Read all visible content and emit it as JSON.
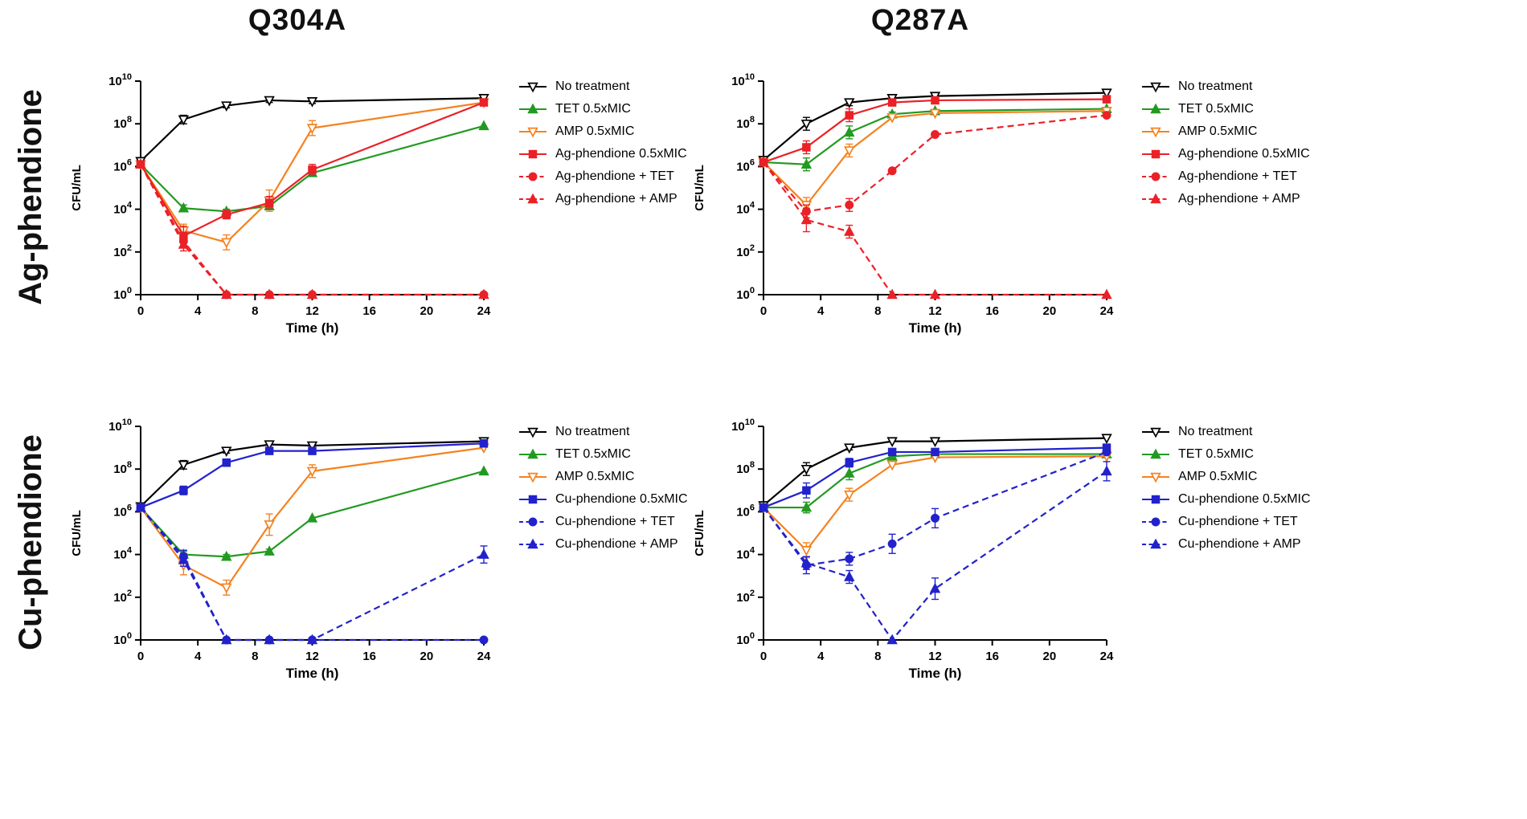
{
  "figure": {
    "column_titles": [
      "Q304A",
      "Q287A"
    ],
    "row_labels": [
      "Ag-phendione",
      "Cu-phendione"
    ],
    "background": "#ffffff"
  },
  "colors": {
    "no_treatment": "#000000",
    "tet": "#229a21",
    "amp": "#f5821f",
    "ag_phendione": "#ea2127",
    "cu_phendione": "#2222cc"
  },
  "chart_data": [
    {
      "type": "line",
      "title": "Q304A",
      "row_label": "Ag-phendione",
      "xlabel": "Time (h)",
      "ylabel": "CFU/mL",
      "x": [
        0,
        3,
        6,
        9,
        12,
        24
      ],
      "xticks": [
        0,
        4,
        8,
        12,
        16,
        20,
        24
      ],
      "ytick_exponents": [
        0,
        2,
        4,
        6,
        8,
        10
      ],
      "xlim": [
        0,
        24
      ],
      "ylog_lim": [
        0,
        10
      ],
      "grid": false,
      "legend_position": "right",
      "series": [
        {
          "name": "No treatment",
          "color": "#000000",
          "line": "solid",
          "marker": "triangle-down",
          "fill": "open",
          "y_log": [
            6.25,
            8.2,
            8.85,
            9.1,
            9.05,
            9.2
          ],
          "err": [
            0.15,
            0.2,
            0.1,
            0.1,
            0.1,
            0.1
          ]
        },
        {
          "name": "TET 0.5xMIC",
          "color": "#229a21",
          "line": "solid",
          "marker": "triangle-up",
          "fill": "solid",
          "y_log": [
            6.1,
            4.05,
            3.9,
            4.15,
            5.7,
            7.9
          ],
          "err": [
            0,
            0.15,
            0.1,
            0.15,
            0.1,
            0
          ]
        },
        {
          "name": "AMP 0.5xMIC",
          "color": "#f5821f",
          "line": "solid",
          "marker": "triangle-down",
          "fill": "open",
          "y_log": [
            6.1,
            3.0,
            2.45,
            4.4,
            7.8,
            9.0
          ],
          "err": [
            0,
            0.3,
            0.35,
            0.5,
            0.35,
            0
          ]
        },
        {
          "name": "Ag-phendione 0.5xMIC",
          "color": "#ea2127",
          "line": "solid",
          "marker": "square",
          "fill": "solid",
          "y_log": [
            6.1,
            2.75,
            3.75,
            4.3,
            5.85,
            9.0
          ],
          "err": [
            0,
            0.45,
            0.2,
            0.3,
            0.25,
            0
          ]
        },
        {
          "name": "Ag-phendione + TET",
          "color": "#ea2127",
          "line": "dashed",
          "marker": "circle",
          "fill": "solid",
          "y_log": [
            6.1,
            2.5,
            0,
            0,
            0,
            0
          ],
          "err": [
            0,
            0.3,
            0,
            0,
            0,
            0
          ]
        },
        {
          "name": "Ag-phendione + AMP",
          "color": "#ea2127",
          "line": "dashed",
          "marker": "triangle-up",
          "fill": "solid",
          "y_log": [
            6.1,
            2.35,
            0,
            0,
            0,
            0
          ],
          "err": [
            0,
            0.3,
            0,
            0,
            0,
            0
          ]
        }
      ]
    },
    {
      "type": "line",
      "title": "Q287A",
      "row_label": "Ag-phendione",
      "xlabel": "Time (h)",
      "ylabel": "CFU/mL",
      "x": [
        0,
        3,
        6,
        9,
        12,
        24
      ],
      "xticks": [
        0,
        4,
        8,
        12,
        16,
        20,
        24
      ],
      "ytick_exponents": [
        0,
        2,
        4,
        6,
        8,
        10
      ],
      "xlim": [
        0,
        24
      ],
      "ylog_lim": [
        0,
        10
      ],
      "grid": false,
      "legend_position": "right",
      "series": [
        {
          "name": "No treatment",
          "color": "#000000",
          "line": "solid",
          "marker": "triangle-down",
          "fill": "open",
          "y_log": [
            6.3,
            8.0,
            9.0,
            9.2,
            9.3,
            9.45
          ],
          "err": [
            0.15,
            0.3,
            0.15,
            0.1,
            0,
            0
          ]
        },
        {
          "name": "TET 0.5xMIC",
          "color": "#229a21",
          "line": "solid",
          "marker": "triangle-up",
          "fill": "solid",
          "y_log": [
            6.2,
            6.1,
            7.6,
            8.45,
            8.6,
            8.7
          ],
          "err": [
            0,
            0.3,
            0.3,
            0.1,
            0,
            0
          ]
        },
        {
          "name": "AMP 0.5xMIC",
          "color": "#f5821f",
          "line": "solid",
          "marker": "triangle-down",
          "fill": "open",
          "y_log": [
            6.2,
            4.2,
            6.75,
            8.3,
            8.5,
            8.6
          ],
          "err": [
            0,
            0.35,
            0.3,
            0,
            0,
            0
          ]
        },
        {
          "name": "Ag-phendione 0.5xMIC",
          "color": "#ea2127",
          "line": "solid",
          "marker": "square",
          "fill": "solid",
          "y_log": [
            6.2,
            6.9,
            8.4,
            9.0,
            9.1,
            9.15
          ],
          "err": [
            0,
            0.3,
            0.3,
            0,
            0,
            0
          ]
        },
        {
          "name": "Ag-phendione + TET",
          "color": "#ea2127",
          "line": "dashed",
          "marker": "circle",
          "fill": "solid",
          "y_log": [
            6.2,
            3.9,
            4.2,
            5.8,
            7.5,
            8.4
          ],
          "err": [
            0,
            0.3,
            0.3,
            0,
            0,
            0
          ]
        },
        {
          "name": "Ag-phendione + AMP",
          "color": "#ea2127",
          "line": "dashed",
          "marker": "triangle-up",
          "fill": "solid",
          "y_log": [
            6.2,
            3.5,
            2.95,
            0,
            0,
            0
          ],
          "err": [
            0,
            0.55,
            0.3,
            0,
            0,
            0
          ]
        }
      ]
    },
    {
      "type": "line",
      "title": "Q304A",
      "row_label": "Cu-phendione",
      "xlabel": "Time (h)",
      "ylabel": "CFU/mL",
      "x": [
        0,
        3,
        6,
        9,
        12,
        24
      ],
      "xticks": [
        0,
        4,
        8,
        12,
        16,
        20,
        24
      ],
      "ytick_exponents": [
        0,
        2,
        4,
        6,
        8,
        10
      ],
      "xlim": [
        0,
        24
      ],
      "ylog_lim": [
        0,
        10
      ],
      "grid": false,
      "legend_position": "right",
      "series": [
        {
          "name": "No treatment",
          "color": "#000000",
          "line": "solid",
          "marker": "triangle-down",
          "fill": "open",
          "y_log": [
            6.25,
            8.2,
            8.85,
            9.15,
            9.1,
            9.3
          ],
          "err": [
            0.15,
            0.2,
            0.1,
            0,
            0,
            0
          ]
        },
        {
          "name": "TET 0.5xMIC",
          "color": "#229a21",
          "line": "solid",
          "marker": "triangle-up",
          "fill": "solid",
          "y_log": [
            6.2,
            4.0,
            3.9,
            4.15,
            5.7,
            7.9
          ],
          "err": [
            0,
            0.15,
            0.1,
            0.1,
            0,
            0
          ]
        },
        {
          "name": "AMP 0.5xMIC",
          "color": "#f5821f",
          "line": "solid",
          "marker": "triangle-down",
          "fill": "open",
          "y_log": [
            6.2,
            3.5,
            2.45,
            5.4,
            7.9,
            9.0
          ],
          "err": [
            0,
            0.45,
            0.35,
            0.5,
            0.3,
            0
          ]
        },
        {
          "name": "Cu-phendione 0.5xMIC",
          "color": "#2222cc",
          "line": "solid",
          "marker": "square",
          "fill": "solid",
          "y_log": [
            6.2,
            7.0,
            8.3,
            8.85,
            8.85,
            9.2
          ],
          "err": [
            0,
            0.2,
            0.15,
            0,
            0,
            0
          ]
        },
        {
          "name": "Cu-phendione + TET",
          "color": "#2222cc",
          "line": "dashed",
          "marker": "circle",
          "fill": "solid",
          "y_log": [
            6.2,
            3.9,
            0,
            0,
            0,
            0
          ],
          "err": [
            0,
            0.3,
            0,
            0,
            0,
            0
          ]
        },
        {
          "name": "Cu-phendione + AMP",
          "color": "#2222cc",
          "line": "dashed",
          "marker": "triangle-up",
          "fill": "solid",
          "y_log": [
            6.2,
            3.75,
            0,
            0,
            0,
            4.0
          ],
          "err": [
            0,
            0.3,
            0,
            0,
            0,
            0.4
          ]
        }
      ]
    },
    {
      "type": "line",
      "title": "Q287A",
      "row_label": "Cu-phendione",
      "xlabel": "Time (h)",
      "ylabel": "CFU/mL",
      "x": [
        0,
        3,
        6,
        9,
        12,
        24
      ],
      "xticks": [
        0,
        4,
        8,
        12,
        16,
        20,
        24
      ],
      "ytick_exponents": [
        0,
        2,
        4,
        6,
        8,
        10
      ],
      "xlim": [
        0,
        24
      ],
      "ylog_lim": [
        0,
        10
      ],
      "grid": false,
      "legend_position": "right",
      "series": [
        {
          "name": "No treatment",
          "color": "#000000",
          "line": "solid",
          "marker": "triangle-down",
          "fill": "open",
          "y_log": [
            6.3,
            8.0,
            9.0,
            9.3,
            9.3,
            9.45
          ],
          "err": [
            0.15,
            0.3,
            0.1,
            0,
            0,
            0
          ]
        },
        {
          "name": "TET 0.5xMIC",
          "color": "#229a21",
          "line": "solid",
          "marker": "triangle-up",
          "fill": "solid",
          "y_log": [
            6.2,
            6.2,
            7.8,
            8.6,
            8.7,
            8.7
          ],
          "err": [
            0,
            0.25,
            0.3,
            0.1,
            0,
            0
          ]
        },
        {
          "name": "AMP 0.5xMIC",
          "color": "#f5821f",
          "line": "solid",
          "marker": "triangle-down",
          "fill": "open",
          "y_log": [
            6.2,
            4.2,
            6.8,
            8.2,
            8.55,
            8.6
          ],
          "err": [
            0,
            0.35,
            0.3,
            0,
            0,
            0
          ]
        },
        {
          "name": "Cu-phendione 0.5xMIC",
          "color": "#2222cc",
          "line": "solid",
          "marker": "square",
          "fill": "solid",
          "y_log": [
            6.2,
            7.0,
            8.3,
            8.8,
            8.8,
            9.0
          ],
          "err": [
            0,
            0.35,
            0.2,
            0,
            0,
            0
          ]
        },
        {
          "name": "Cu-phendione + TET",
          "color": "#2222cc",
          "line": "dashed",
          "marker": "circle",
          "fill": "solid",
          "y_log": [
            6.2,
            3.5,
            3.8,
            4.5,
            5.7,
            8.8
          ],
          "err": [
            0,
            0.4,
            0.3,
            0.45,
            0.45,
            0
          ]
        },
        {
          "name": "Cu-phendione + AMP",
          "color": "#2222cc",
          "line": "dashed",
          "marker": "triangle-up",
          "fill": "solid",
          "y_log": [
            6.2,
            3.6,
            2.95,
            0,
            2.4,
            7.9
          ],
          "err": [
            0,
            0.3,
            0.3,
            0,
            0.5,
            0.45
          ]
        }
      ]
    }
  ]
}
